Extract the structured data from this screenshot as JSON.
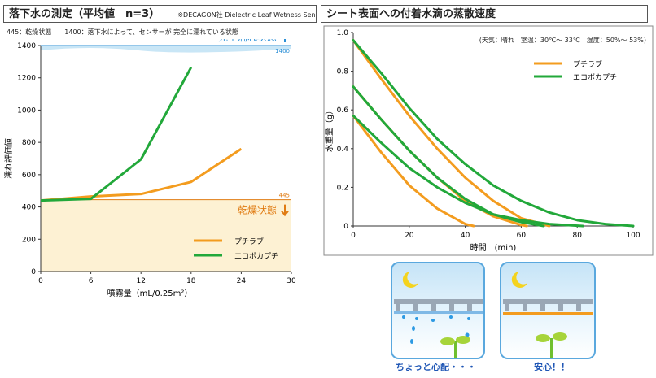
{
  "left_panel": {
    "title": "落下水の測定（平均値　n=3）",
    "note": "※DECAGON社 Dielectric Leaf Wetness Sensor 使用",
    "subnote": "445：乾燥状態　　1400：落下水によって、センサーが 完全に濡れている状態",
    "wet_label": "完全濡れ状態",
    "wet_value_label": "1400",
    "dry_label": "乾燥状態",
    "dry_value_label": "445",
    "colors": {
      "wet_band": "#c9e6f6",
      "dry_band": "#fdf1d3",
      "wet_text": "#2b8fd6",
      "dry_text": "#e07b12"
    }
  },
  "right_panel": {
    "title": "シート表面への付着水滴の蒸散速度",
    "conditions": "(天気：晴れ　室温：30℃～ 33℃　湿度：50%～ 53%)"
  },
  "illustrations": {
    "left_caption": "ちょっと心配・・・",
    "right_caption": "安心！！"
  },
  "chart_data": [
    {
      "type": "line",
      "xlabel": "噴霧量（mL/0.25m²）",
      "ylabel": "濡れ評価値",
      "xlim": [
        0,
        30
      ],
      "ylim": [
        0,
        1400
      ],
      "xticks": [
        0,
        6,
        12,
        18,
        24,
        30
      ],
      "yticks": [
        0,
        200,
        400,
        600,
        800,
        1000,
        1200,
        1400
      ],
      "reference_lines": [
        1400,
        445
      ],
      "legend_position": "bottom-right",
      "series": [
        {
          "name": "プチラブ",
          "color": "#f39c1f",
          "x": [
            0,
            6,
            12,
            18,
            24
          ],
          "y": [
            440,
            465,
            480,
            555,
            760
          ]
        },
        {
          "name": "エコポカプチ",
          "color": "#22a83a",
          "x": [
            0,
            6,
            12,
            18
          ],
          "y": [
            440,
            450,
            695,
            1265
          ]
        }
      ]
    },
    {
      "type": "line",
      "xlabel": "時間　(min)",
      "ylabel": "水重量（g）",
      "xlim": [
        0,
        100
      ],
      "ylim": [
        0,
        1.0
      ],
      "xticks": [
        0,
        20,
        40,
        60,
        80,
        100
      ],
      "yticks": [
        0,
        0.2,
        0.4,
        0.6,
        0.8,
        1.0
      ],
      "legend_position": "top-right",
      "series": [
        {
          "name": "プチラブ",
          "color": "#f39c1f",
          "runs": [
            {
              "x": [
                0,
                10,
                20,
                30,
                40,
                43
              ],
              "y": [
                0.57,
                0.38,
                0.21,
                0.09,
                0.01,
                0
              ]
            },
            {
              "x": [
                0,
                10,
                20,
                30,
                40,
                50,
                60,
                62
              ],
              "y": [
                0.72,
                0.55,
                0.39,
                0.25,
                0.13,
                0.05,
                0.005,
                0
              ]
            },
            {
              "x": [
                0,
                10,
                20,
                30,
                40,
                50,
                60,
                70
              ],
              "y": [
                0.96,
                0.76,
                0.57,
                0.4,
                0.25,
                0.13,
                0.04,
                0
              ]
            }
          ]
        },
        {
          "name": "エコポカプチ",
          "color": "#22a83a",
          "runs": [
            {
              "x": [
                0,
                10,
                20,
                30,
                40,
                50,
                60,
                70,
                82
              ],
              "y": [
                0.57,
                0.43,
                0.3,
                0.2,
                0.12,
                0.06,
                0.03,
                0.01,
                0
              ]
            },
            {
              "x": [
                0,
                10,
                20,
                30,
                40,
                50,
                60,
                68
              ],
              "y": [
                0.72,
                0.55,
                0.39,
                0.25,
                0.14,
                0.06,
                0.02,
                0
              ]
            },
            {
              "x": [
                0,
                10,
                20,
                30,
                40,
                50,
                60,
                70,
                80,
                90,
                100
              ],
              "y": [
                0.96,
                0.79,
                0.61,
                0.45,
                0.32,
                0.21,
                0.13,
                0.07,
                0.03,
                0.01,
                0
              ]
            }
          ]
        }
      ]
    }
  ]
}
